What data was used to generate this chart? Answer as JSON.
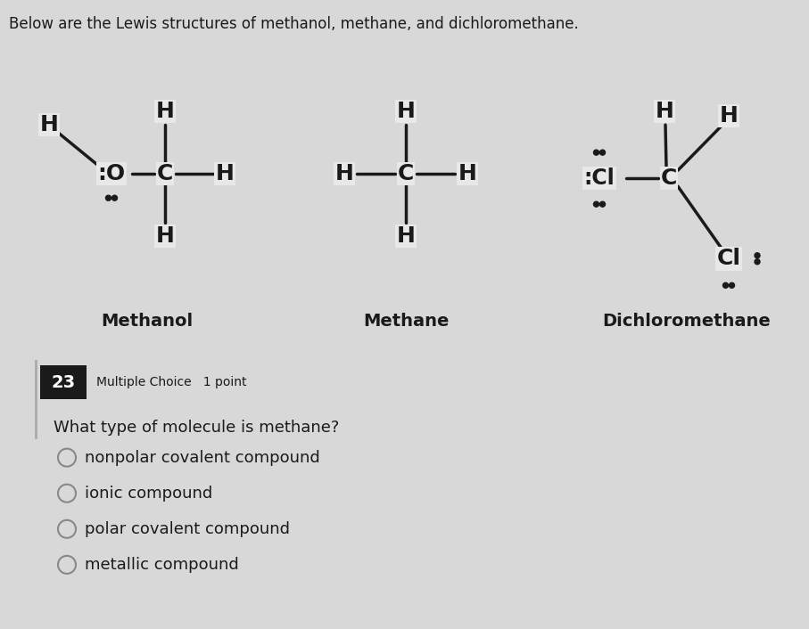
{
  "header_text": "Below are the Lewis structures of methanol, methane, and dichloromethane.",
  "question_number": "23",
  "question_type": "Multiple Choice   1 point",
  "question_text": "What type of molecule is methane?",
  "options": [
    "nonpolar covalent compound",
    "ionic compound",
    "polar covalent compound",
    "metallic compound"
  ],
  "molecule_labels": [
    "Methanol",
    "Methane",
    "Dichloromethane"
  ],
  "bg_top": "#e8e8e8",
  "bg_bottom": "#d8d8d8",
  "text_color": "#1a1a1a",
  "number_box_color": "#1a1a1a",
  "number_text_color": "#ffffff",
  "font_size_header": 12,
  "font_size_atom": 18,
  "font_size_label": 14,
  "font_size_question": 13,
  "font_size_options": 13,
  "font_size_number": 14
}
